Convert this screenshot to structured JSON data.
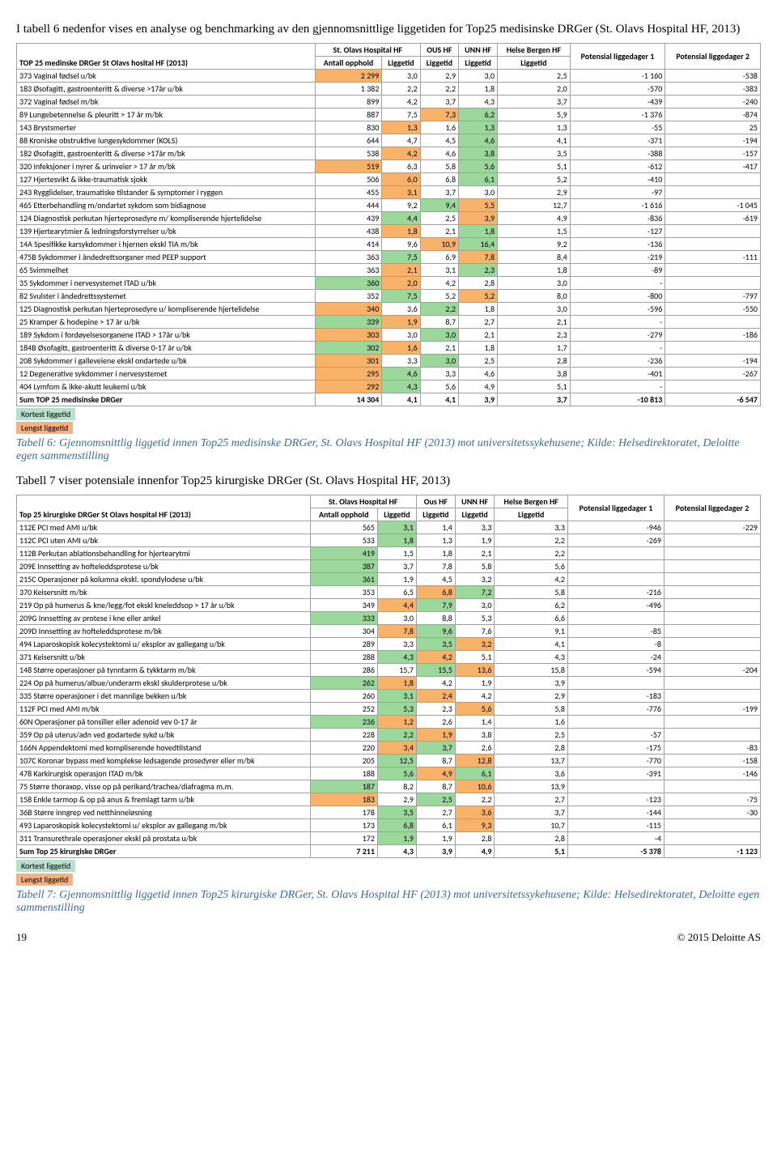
{
  "intro": "I tabell 6 nedenfor vises en analyse og benchmarking av den gjennomsnittlige liggetiden for Top25 medisinske DRGer (St. Olavs Hospital HF, 2013)",
  "legend": {
    "kortest": "Kortest liggetid",
    "lengst": "Lengst liggetid"
  },
  "colors": {
    "green": "#9cd79c",
    "orange": "#f8b26a",
    "kortest_bg": "#b7e1cd",
    "lengst_bg": "#f4b183"
  },
  "table1": {
    "title_col": "TOP 25 medinske DRGer St Olavs hosital HF (2013)",
    "header_group": "St. Olavs Hospital HF",
    "cols": [
      "Antall opphold",
      "Liggetid",
      "OUS HF",
      "UNN HF",
      "Helse Bergen HF",
      "Potensial liggedager 1",
      "Potensial liggedager 2"
    ],
    "subcols": [
      "",
      "",
      "Liggetid",
      "Liggetid",
      "Liggetid",
      "",
      ""
    ],
    "rows": [
      [
        "373 Vaginal fødsel u/bk",
        "2 299",
        "3,0",
        "2,9",
        "3,0",
        "2,5",
        "-1 160",
        "-538"
      ],
      [
        "183 Øsofagitt, gastroenteritt & diverse >17år u/bk",
        "1 382",
        "2,2",
        "2,2",
        "1,8",
        "2,0",
        "-570",
        "-383"
      ],
      [
        "372 Vaginal fødsel m/bk",
        "899",
        "4,2",
        "3,7",
        "4,3",
        "3,7",
        "-439",
        "-240"
      ],
      [
        "89 Lungebetennelse & pleuritt > 17 år m/bk",
        "887",
        "7,5",
        "7,3",
        "6,2",
        "5,9",
        "-1 376",
        "-874"
      ],
      [
        "143 Brystsmerter",
        "830",
        "1,3",
        "1,6",
        "1,3",
        "1,3",
        "-55",
        "25"
      ],
      [
        "88 Kroniske obstruktive lungesykdommer (KOLS)",
        "644",
        "4,7",
        "4,5",
        "4,6",
        "4,1",
        "-371",
        "-194"
      ],
      [
        "182 Øsofagitt, gastroenteritt & diverse >17år m/bk",
        "538",
        "4,2",
        "4,6",
        "3,8",
        "3,5",
        "-388",
        "-157"
      ],
      [
        "320 Infeksjoner i nyrer & urinveier > 17 år m/bk",
        "519",
        "6,3",
        "5,8",
        "5,6",
        "5,1",
        "-612",
        "-417"
      ],
      [
        "127 Hjertesvikt & ikke-traumatisk sjokk",
        "506",
        "6,0",
        "6,8",
        "6,1",
        "5,2",
        "-410",
        ""
      ],
      [
        "243 Rygglidelser, traumatiske tilstander & symptomer i ryggen",
        "455",
        "3,1",
        "3,7",
        "3,0",
        "2,9",
        "-97",
        ""
      ],
      [
        "465 Etterbehandling m/ondartet sykdom som bidiagnose",
        "444",
        "9,2",
        "9,4",
        "5,5",
        "12,7",
        "-1 616",
        "-1 045"
      ],
      [
        "124 Diagnostisk perkutan hjerteprosedyre m/ kompliserende hjertelidelse",
        "439",
        "4,4",
        "2,5",
        "3,9",
        "4,9",
        "-836",
        "-619"
      ],
      [
        "139 Hjertearytmier & ledningsforstyrrelser u/bk",
        "438",
        "1,8",
        "2,1",
        "1,8",
        "1,5",
        "-127",
        ""
      ],
      [
        "14A Spesifikke karsykdommer i hjernen ekskl TIA m/bk",
        "414",
        "9,6",
        "10,9",
        "16,4",
        "9,2",
        "-136",
        ""
      ],
      [
        "475B Sykdommer i åndedrettsorganer med PEEP support",
        "363",
        "7,5",
        "6,9",
        "7,8",
        "8,4",
        "-219",
        "-111"
      ],
      [
        "65 Svimmelhet",
        "363",
        "2,1",
        "3,1",
        "2,3",
        "1,8",
        "-89",
        ""
      ],
      [
        "35 Sykdommer i nervesystemet ITAD u/bk",
        "360",
        "2,0",
        "4,2",
        "2,8",
        "3,0",
        "-",
        ""
      ],
      [
        "82 Svulster i åndedrettssystemet",
        "352",
        "7,5",
        "5,2",
        "5,2",
        "8,0",
        "-800",
        "-797"
      ],
      [
        "125 Diagnostisk perkutan hjerteprosedyre u/ kompliserende hjertelidelse",
        "340",
        "3,6",
        "2,2",
        "1,8",
        "3,0",
        "-596",
        "-550"
      ],
      [
        "25 Kramper & hodepine > 17 år u/bk",
        "339",
        "1,9",
        "8,7",
        "2,7",
        "2,1",
        "-",
        ""
      ],
      [
        "189 Sykdom i fordøyelsesorganene ITAD > 17år u/bk",
        "303",
        "3,0",
        "3,0",
        "2,1",
        "2,3",
        "-279",
        "-186"
      ],
      [
        "184B Øsofagitt, gastroenteritt & diverse 0-17 år u/bk",
        "302",
        "1,6",
        "2,1",
        "1,8",
        "1,7",
        "-",
        ""
      ],
      [
        "208 Sykdommer i galleveiene ekskl ondartede u/bk",
        "301",
        "3,3",
        "3,0",
        "2,5",
        "2,8",
        "-236",
        "-194"
      ],
      [
        "12 Degenerative sykdommer i nervesystemet",
        "295",
        "4,6",
        "3,3",
        "4,6",
        "3,8",
        "-401",
        "-267"
      ],
      [
        "404 Lymfom & ikke-akutt leukemi u/bk",
        "292",
        "4,3",
        "5,6",
        "4,9",
        "5,1",
        "-",
        ""
      ]
    ],
    "sum": [
      "Sum TOP 25 medisinske DRGer",
      "14 304",
      "4,1",
      "4,1",
      "3,9",
      "3,7",
      "-10 813",
      "-6 547"
    ],
    "hl": {
      "0": {
        "1": "o"
      },
      "3": {
        "3": "o",
        "4": "g"
      },
      "4": {
        "2": "o",
        "4": "g"
      },
      "5": {
        "4": "g"
      },
      "6": {
        "2": "o",
        "4": "g"
      },
      "7": {
        "1": "o",
        "4": "g"
      },
      "8": {
        "2": "o",
        "4": "g"
      },
      "9": {
        "2": "o"
      },
      "10": {
        "3": "g",
        "4": "o"
      },
      "11": {
        "2": "g",
        "4": "o"
      },
      "12": {
        "2": "o",
        "4": "g"
      },
      "13": {
        "3": "o",
        "4": "g"
      },
      "14": {
        "2": "g",
        "4": "o"
      },
      "15": {
        "2": "o",
        "4": "g"
      },
      "16": {
        "1": "g",
        "2": "o"
      },
      "17": {
        "2": "g",
        "4": "o"
      },
      "18": {
        "1": "o",
        "3": "g"
      },
      "19": {
        "1": "g",
        "2": "o"
      },
      "20": {
        "1": "o",
        "3": "g"
      },
      "21": {
        "1": "g",
        "2": "o"
      },
      "22": {
        "1": "o",
        "3": "g"
      },
      "23": {
        "1": "o",
        "2": "g"
      },
      "24": {
        "1": "o",
        "2": "g"
      }
    }
  },
  "caption1": "Tabell 6: Gjennomsnittlig liggetid innen Top25 medisinske DRGer, St. Olavs Hospital HF (2013) mot universitetssykehusene; Kilde: Helsedirektoratet, Deloitte egen sammenstilling",
  "intro2": "Tabell 7 viser potensiale innenfor Top25 kirurgiske DRGer (St. Olavs Hospital HF, 2013)",
  "table2": {
    "title_col": "Top 25 kirurgiske DRGer St Olavs hospital HF (2013)",
    "header_group": "St. Olavs Hospital HF",
    "cols": [
      "Antall opphold",
      "Liggetid",
      "Ous HF",
      "UNN HF",
      "Helse Bergen HF",
      "Potensial liggedager 1",
      "Potensial liggedager 2"
    ],
    "rows": [
      [
        "112E PCI med AMI u/bk",
        "565",
        "3,1",
        "1,4",
        "3,3",
        "3,3",
        "-946",
        "-229"
      ],
      [
        "112C PCI uten AMI u/bk",
        "533",
        "1,8",
        "1,3",
        "1,9",
        "2,2",
        "-269",
        ""
      ],
      [
        "112B Perkutan ablationsbehandling for hjertearytmi",
        "419",
        "1,5",
        "1,8",
        "2,1",
        "2,2",
        "",
        ""
      ],
      [
        "209E Innsetting av hofteleddsprotese u/bk",
        "387",
        "3,7",
        "7,8",
        "5,8",
        "5,6",
        "",
        ""
      ],
      [
        "215C Operasjoner på kolumna ekskl. spondylodese u/bk",
        "361",
        "1,9",
        "4,5",
        "3,2",
        "4,2",
        "",
        ""
      ],
      [
        "370 Keisersnitt m/bk",
        "353",
        "6,5",
        "6,8",
        "7,2",
        "5,8",
        "-216",
        ""
      ],
      [
        "219 Op på humerus & kne/legg/fot ekskl kneleddsop > 17 år u/bk",
        "349",
        "4,4",
        "7,9",
        "3,0",
        "6,2",
        "-496",
        ""
      ],
      [
        "209G Innsetting av protese i kne eller ankel",
        "333",
        "3,0",
        "8,8",
        "5,3",
        "6,6",
        "",
        ""
      ],
      [
        "209D Innsetting av hofteleddsprotese m/bk",
        "304",
        "7,8",
        "9,6",
        "7,6",
        "9,1",
        "-85",
        ""
      ],
      [
        "494 Laparoskopisk kolecystektomi u/ eksplor av gallegang u/bk",
        "289",
        "3,3",
        "3,5",
        "3,2",
        "4,1",
        "-8",
        ""
      ],
      [
        "371 Keisersnitt u/bk",
        "288",
        "4,3",
        "4,2",
        "5,1",
        "4,3",
        "-24",
        ""
      ],
      [
        "148 Større operasjoner på tynntarm & tykktarm m/bk",
        "286",
        "15,7",
        "15,5",
        "13,6",
        "15,8",
        "-594",
        "-204"
      ],
      [
        "224 Op på humerus/albue/underarm ekskl skulderprotese u/bk",
        "262",
        "1,8",
        "4,2",
        "1,9",
        "3,9",
        "",
        ""
      ],
      [
        "335 Større operasjoner i det mannlige bekken u/bk",
        "260",
        "3,1",
        "2,4",
        "4,2",
        "2,9",
        "-183",
        ""
      ],
      [
        "112F PCI med AMI m/bk",
        "252",
        "5,3",
        "2,3",
        "5,6",
        "5,8",
        "-776",
        "-199"
      ],
      [
        "60N Operasjoner på tonsiller eller adenoid vev 0-17 år",
        "236",
        "1,2",
        "2,6",
        "1,4",
        "1,6",
        "",
        ""
      ],
      [
        "359 Op på uterus/adn ved godartede sykd u/bk",
        "228",
        "2,2",
        "1,9",
        "3,8",
        "2,5",
        "-57",
        ""
      ],
      [
        "166N Appendektomi med kompliserende hovedtilstand",
        "220",
        "3,4",
        "3,7",
        "2,6",
        "2,8",
        "-175",
        "-83"
      ],
      [
        "107C Koronar bypass med komplekse ledsagende prosedyrer eller m/bk",
        "205",
        "12,5",
        "8,7",
        "12,8",
        "13,7",
        "-770",
        "-158"
      ],
      [
        "478 Karkirurgisk operasjon ITAD m/bk",
        "188",
        "5,6",
        "4,9",
        "6,1",
        "3,6",
        "-391",
        "-146"
      ],
      [
        "75 Større thoraxop, visse op på perikard/trachea/diafragma m.m.",
        "187",
        "8,2",
        "8,7",
        "10,6",
        "13,9",
        "",
        ""
      ],
      [
        "158 Enkle tarmop & op på anus & fremlagt tarm u/bk",
        "183",
        "2,9",
        "2,5",
        "2,2",
        "2,7",
        "-123",
        "-75"
      ],
      [
        "36B Større inngrep ved netthinneløsning",
        "178",
        "3,5",
        "2,7",
        "3,6",
        "3,7",
        "-144",
        "-30"
      ],
      [
        "493 Laparoskopisk kolecystektomi u/ eksplor av gallegang m/bk",
        "173",
        "6,8",
        "6,1",
        "9,3",
        "10,7",
        "-115",
        ""
      ],
      [
        "311 Transurethrale operasjoner ekskl på prostata u/bk",
        "172",
        "1,9",
        "1,9",
        "2,8",
        "2,8",
        "-4",
        ""
      ]
    ],
    "sum": [
      "Sum Top 25 kirurgiske DRGer",
      "7 211",
      "4,3",
      "3,9",
      "4,9",
      "5,1",
      "-5 378",
      "-1 123"
    ],
    "hl": {
      "0": {
        "2": "g"
      },
      "1": {
        "2": "g"
      },
      "2": {
        "1": "g"
      },
      "3": {
        "1": "g"
      },
      "4": {
        "1": "g"
      },
      "5": {
        "3": "o",
        "4": "g"
      },
      "6": {
        "2": "o",
        "3": "g"
      },
      "7": {
        "1": "g"
      },
      "8": {
        "2": "o",
        "3": "g"
      },
      "9": {
        "3": "g",
        "4": "o"
      },
      "10": {
        "2": "g",
        "3": "o"
      },
      "11": {
        "3": "g",
        "4": "o"
      },
      "12": {
        "1": "g",
        "2": "o"
      },
      "13": {
        "2": "g",
        "3": "o"
      },
      "14": {
        "2": "g",
        "4": "o"
      },
      "15": {
        "1": "g",
        "2": "o"
      },
      "16": {
        "2": "g",
        "3": "o"
      },
      "17": {
        "2": "o",
        "3": "g"
      },
      "18": {
        "2": "g",
        "4": "o"
      },
      "19": {
        "2": "g",
        "3": "o",
        "4": "g"
      },
      "20": {
        "1": "g",
        "4": "o"
      },
      "21": {
        "1": "o",
        "3": "g"
      },
      "22": {
        "2": "g",
        "4": "o"
      },
      "23": {
        "2": "g",
        "4": "o"
      },
      "24": {
        "2": "g"
      }
    }
  },
  "caption2": "Tabell 7: Gjennomsnittlig liggetid innen Top25 kirurgiske DRGer, St. Olavs Hospital HF (2013) mot universitetssykehusene; Kilde: Helsedirektoratet, Deloitte egen sammenstilling",
  "footer": {
    "page": "19",
    "copyright": "© 2015 Deloitte AS"
  }
}
